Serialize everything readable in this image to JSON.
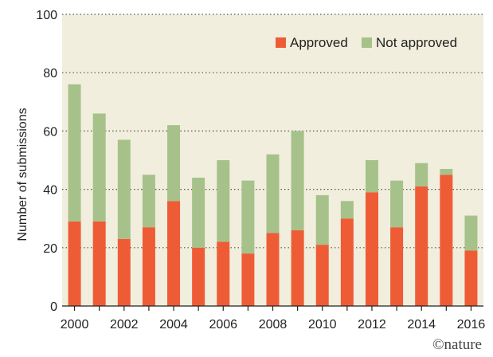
{
  "chart_data": {
    "type": "bar",
    "stacked": true,
    "categories": [
      "2000",
      "2001",
      "2002",
      "2003",
      "2004",
      "2005",
      "2006",
      "2007",
      "2008",
      "2009",
      "2010",
      "2011",
      "2012",
      "2013",
      "2014",
      "2015",
      "2016"
    ],
    "x_tick_labels": [
      "2000",
      "2002",
      "2004",
      "2006",
      "2008",
      "2010",
      "2012",
      "2014",
      "2016"
    ],
    "series": [
      {
        "name": "Approved",
        "color": "#ee5c36",
        "values": [
          29,
          29,
          23,
          27,
          36,
          20,
          22,
          18,
          25,
          26,
          21,
          30,
          39,
          27,
          41,
          45,
          19
        ]
      },
      {
        "name": "Not approved",
        "color": "#a6c28a",
        "values": [
          47,
          37,
          34,
          18,
          26,
          24,
          28,
          25,
          27,
          34,
          17,
          6,
          11,
          16,
          8,
          2,
          12
        ]
      }
    ],
    "ylabel": "Number of submissions",
    "xlabel": "",
    "ylim": [
      0,
      100
    ],
    "yticks": [
      0,
      20,
      40,
      60,
      80,
      100
    ],
    "grid": "horizontal dotted",
    "legend_position": "top-right",
    "plot_background": "#f1eedd"
  },
  "credit": "©nature"
}
